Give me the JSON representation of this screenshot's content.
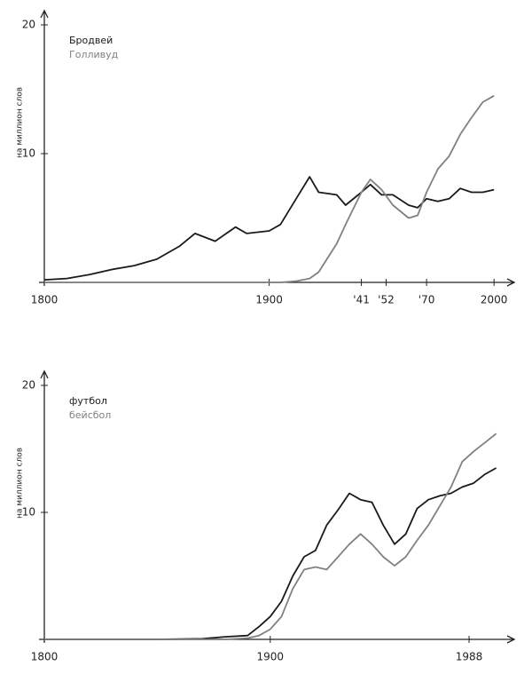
{
  "chart_data": [
    {
      "type": "line",
      "ylabel": "на миллион слов",
      "legend": "upper left",
      "x": [
        1800,
        1810,
        1820,
        1830,
        1840,
        1850,
        1860,
        1867,
        1876,
        1885,
        1890,
        1900,
        1905,
        1912,
        1918,
        1922,
        1930,
        1934,
        1941,
        1945,
        1950,
        1955,
        1962,
        1966,
        1970,
        1975,
        1980,
        1985,
        1990,
        1995,
        2000
      ],
      "series": [
        {
          "name": "Бродвей",
          "color": "#1a1a1a",
          "values": [
            0.2,
            0.3,
            0.6,
            1.0,
            1.3,
            1.8,
            2.8,
            3.8,
            3.2,
            4.3,
            3.8,
            4.0,
            4.5,
            6.5,
            8.2,
            7.0,
            6.8,
            6.0,
            7.0,
            7.6,
            6.8,
            6.8,
            6.0,
            5.8,
            6.5,
            6.3,
            6.5,
            7.3,
            7.0,
            7.0,
            7.2
          ]
        },
        {
          "name": "Голливуд",
          "color": "#808080",
          "values": [
            0,
            0,
            0,
            0,
            0,
            0,
            0,
            0,
            0,
            0,
            0,
            0,
            0,
            0.1,
            0.3,
            0.8,
            3.0,
            4.5,
            7.0,
            8.0,
            7.2,
            6.0,
            5.0,
            5.2,
            7.0,
            8.8,
            9.8,
            11.5,
            12.8,
            14.0,
            14.5
          ]
        }
      ],
      "xlim": [
        1800,
        2009
      ],
      "xticks": [
        1800,
        1900,
        {
          "value": 1941,
          "label": "'41"
        },
        {
          "value": 1952,
          "label": "'52"
        },
        {
          "value": 1970,
          "label": "'70"
        },
        2000
      ],
      "ylim": [
        0,
        20
      ],
      "yticks": [
        10,
        20
      ]
    },
    {
      "type": "line",
      "ylabel": "на миллион слов",
      "legend": "upper left",
      "x": [
        1800,
        1850,
        1870,
        1880,
        1890,
        1895,
        1900,
        1905,
        1910,
        1915,
        1920,
        1925,
        1930,
        1935,
        1940,
        1945,
        1950,
        1955,
        1960,
        1965,
        1970,
        1975,
        1980,
        1985,
        1990,
        1995,
        2000
      ],
      "series": [
        {
          "name": "футбол",
          "color": "#1a1a1a",
          "values": [
            0,
            0,
            0.05,
            0.2,
            0.3,
            1.0,
            1.8,
            3.0,
            5.0,
            6.5,
            7.0,
            9.0,
            10.2,
            11.5,
            11.0,
            10.8,
            9.0,
            7.5,
            8.3,
            10.3,
            11.0,
            11.3,
            11.5,
            12.0,
            12.3,
            13.0,
            13.5
          ]
        },
        {
          "name": "бейсбол",
          "color": "#808080",
          "values": [
            0,
            0,
            0,
            0,
            0.1,
            0.3,
            0.8,
            1.8,
            4.0,
            5.5,
            5.7,
            5.5,
            6.5,
            7.5,
            8.3,
            7.5,
            6.5,
            5.8,
            6.5,
            7.8,
            9.0,
            10.5,
            12.0,
            14.0,
            14.8,
            15.5,
            16.2
          ]
        }
      ],
      "xlim": [
        1800,
        2008
      ],
      "xticks": [
        1800,
        1900,
        1988
      ],
      "ylim": [
        0,
        20
      ],
      "yticks": [
        10,
        20
      ]
    }
  ]
}
